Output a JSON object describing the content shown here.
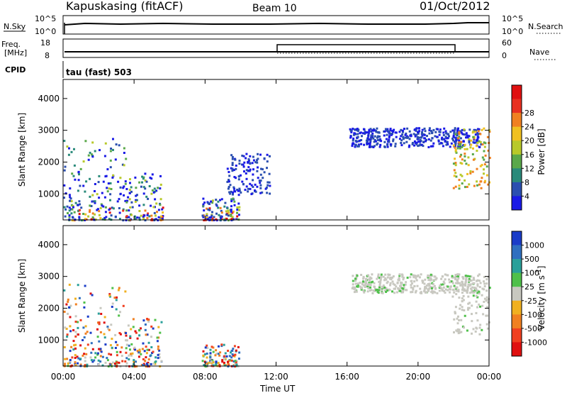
{
  "header": {
    "station": "Kapuskasing (fitACF)",
    "beam": "Beam 10",
    "date": "01/Oct/2012"
  },
  "sky_strip": {
    "left_label": "N.Sky",
    "right_label": "N.Search",
    "left_ticks": [
      "10^5",
      "10^0"
    ],
    "right_ticks": [
      "10^5",
      "10^0"
    ]
  },
  "freq_strip": {
    "left_label_1": "Freq.",
    "left_label_2": "[MHz]",
    "right_label": "Nave",
    "left_ticks": [
      "18",
      "8"
    ],
    "right_ticks": [
      "60",
      "0"
    ]
  },
  "cpid": {
    "label": "CPID",
    "text": "tau (fast) 503"
  },
  "chart_data": [
    {
      "type": "heatmap",
      "name": "power",
      "ylabel": "Slant Range [km]",
      "xlabel": "Time UT",
      "x_ticks": [
        "00:00",
        "04:00",
        "08:00",
        "12:00",
        "16:00",
        "20:00",
        "00:00"
      ],
      "y_ticks": [
        "1000",
        "2000",
        "3000",
        "4000"
      ],
      "ylim": [
        180,
        4600
      ],
      "colorbar_label": "Power [dB]",
      "colorbar_ticks": [
        "4",
        "8",
        "12",
        "16",
        "20",
        "24",
        "28"
      ],
      "colorbar_colors": [
        "#1a1ae6",
        "#2b4fb0",
        "#2a8a7a",
        "#5aa84a",
        "#b8c92a",
        "#f0c020",
        "#f08020",
        "#e83020",
        "#e01010"
      ],
      "echo_regions": [
        {
          "t0": 0.0,
          "t1": 3.5,
          "r0": 200,
          "r1": 2800,
          "level": "mixed"
        },
        {
          "t0": 3.5,
          "t1": 5.6,
          "r0": 200,
          "r1": 1700,
          "level": "mixed"
        },
        {
          "t0": 7.8,
          "t1": 9.9,
          "r0": 200,
          "r1": 900,
          "level": "mixed"
        },
        {
          "t0": 9.2,
          "t1": 11.6,
          "r0": 1000,
          "r1": 2300,
          "level": "weak"
        },
        {
          "t0": 16.1,
          "t1": 23.5,
          "r0": 2500,
          "r1": 3100,
          "level": "weak"
        },
        {
          "t0": 21.9,
          "t1": 24.0,
          "r0": 1200,
          "r1": 3100,
          "level": "strong"
        }
      ]
    },
    {
      "type": "heatmap",
      "name": "velocity",
      "ylabel": "Slant Range [km]",
      "xlabel": "Time UT",
      "x_ticks": [
        "00:00",
        "04:00",
        "08:00",
        "12:00",
        "16:00",
        "20:00",
        "00:00"
      ],
      "y_ticks": [
        "1000",
        "2000",
        "3000",
        "4000"
      ],
      "ylim": [
        180,
        4600
      ],
      "colorbar_label": "Velocity [m s^-1]",
      "colorbar_ticks": [
        "1000",
        "500",
        "100",
        "25",
        "-25",
        "-100",
        "-500",
        "-1000"
      ],
      "colorbar_colors": [
        "#1a3cc8",
        "#2f6fc0",
        "#2aa09a",
        "#4fc04a",
        "#c8c8c0",
        "#f0b020",
        "#f08020",
        "#f04020",
        "#e01010"
      ],
      "echo_regions": [
        {
          "t0": 0.0,
          "t1": 3.5,
          "r0": 200,
          "r1": 2800,
          "level": "mixed"
        },
        {
          "t0": 3.5,
          "t1": 5.6,
          "r0": 200,
          "r1": 1700,
          "level": "mixed"
        },
        {
          "t0": 7.8,
          "t1": 9.9,
          "r0": 200,
          "r1": 900,
          "level": "mixed"
        },
        {
          "t0": 16.1,
          "t1": 23.5,
          "r0": 2500,
          "r1": 3100,
          "level": "ground"
        },
        {
          "t0": 21.9,
          "t1": 24.0,
          "r0": 1200,
          "r1": 3100,
          "level": "ground"
        }
      ]
    }
  ]
}
